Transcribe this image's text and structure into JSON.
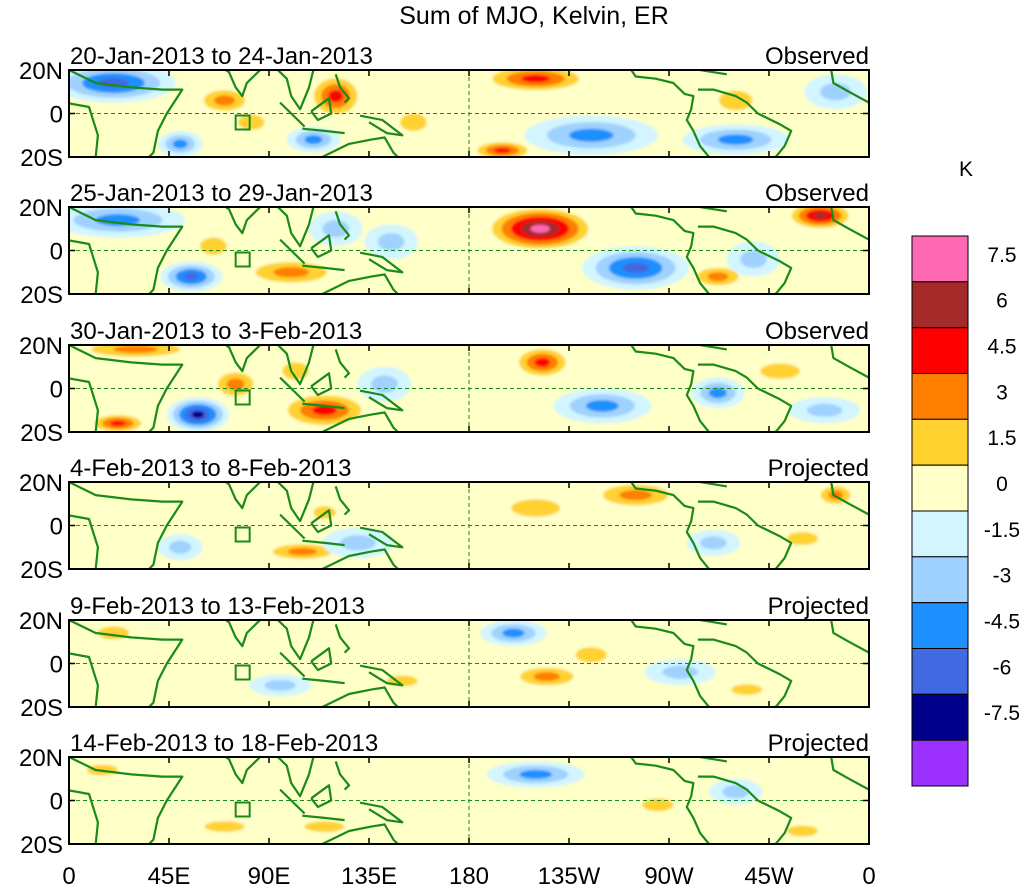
{
  "chart_data": {
    "type": "heatmap",
    "title": "Sum of MJO, Kelvin, ER",
    "xlabel": "",
    "ylabel": "",
    "x_tick_labels": [
      "0",
      "45E",
      "90E",
      "135E",
      "180",
      "135W",
      "90W",
      "45W",
      "0"
    ],
    "x_tick_longitudes": [
      0,
      45,
      90,
      135,
      180,
      225,
      270,
      315,
      360
    ],
    "y_tick_labels": [
      "20N",
      "0",
      "20S"
    ],
    "y_tick_latitudes": [
      20,
      0,
      -20
    ],
    "xlim": [
      0,
      360
    ],
    "ylim": [
      -20,
      20
    ],
    "colorbar": {
      "unit_label": "K",
      "tick_labels": [
        "7.5",
        "6",
        "4.5",
        "3",
        "1.5",
        "0",
        "-1.5",
        "-3",
        "-4.5",
        "-6",
        "-7.5"
      ],
      "levels_top_to_bottom": [
        {
          "range": [
            7.5,
            9
          ],
          "color": "#ff69b4"
        },
        {
          "range": [
            6,
            7.5
          ],
          "color": "#a52a2a"
        },
        {
          "range": [
            4.5,
            6
          ],
          "color": "#ff0000"
        },
        {
          "range": [
            3,
            4.5
          ],
          "color": "#ff7f00"
        },
        {
          "range": [
            1.5,
            3
          ],
          "color": "#ffd230"
        },
        {
          "range": [
            0,
            1.5
          ],
          "color": "#ffffc8"
        },
        {
          "range": [
            -1.5,
            0
          ],
          "color": "#d2f5ff"
        },
        {
          "range": [
            -3,
            -1.5
          ],
          "color": "#a0d2ff"
        },
        {
          "range": [
            -4.5,
            -3
          ],
          "color": "#1e90ff"
        },
        {
          "range": [
            -6,
            -4.5
          ],
          "color": "#4169e1"
        },
        {
          "range": [
            -7.5,
            -6
          ],
          "color": "#00008b"
        },
        {
          "range": [
            -9,
            -7.5
          ],
          "color": "#9b30ff"
        }
      ]
    },
    "panels": [
      {
        "period": "20-Jan-2013 to 24-Jan-2013",
        "status": "Observed",
        "anomalies": [
          {
            "lon": 20,
            "lat": 14,
            "rx": 28,
            "ry": 9,
            "value": -4.8
          },
          {
            "lon": 70,
            "lat": 6,
            "rx": 14,
            "ry": 7,
            "value": 3.6
          },
          {
            "lon": 50,
            "lat": -14,
            "rx": 10,
            "ry": 6,
            "value": -3.2
          },
          {
            "lon": 82,
            "lat": -4,
            "rx": 12,
            "ry": 7,
            "value": 2.2
          },
          {
            "lon": 120,
            "lat": 8,
            "rx": 13,
            "ry": 11,
            "value": 5.5
          },
          {
            "lon": 110,
            "lat": -12,
            "rx": 12,
            "ry": 6,
            "value": -3.6
          },
          {
            "lon": 155,
            "lat": -4,
            "rx": 12,
            "ry": 8,
            "value": 2.3
          },
          {
            "lon": 210,
            "lat": 16,
            "rx": 26,
            "ry": 7,
            "value": 5.3
          },
          {
            "lon": 195,
            "lat": -17,
            "rx": 15,
            "ry": 5,
            "value": 4.8
          },
          {
            "lon": 235,
            "lat": -10,
            "rx": 30,
            "ry": 9,
            "value": -4.4
          },
          {
            "lon": 300,
            "lat": 6,
            "rx": 15,
            "ry": 9,
            "value": 2.6
          },
          {
            "lon": 300,
            "lat": -12,
            "rx": 24,
            "ry": 7,
            "value": -3.3
          },
          {
            "lon": 345,
            "lat": 10,
            "rx": 14,
            "ry": 8,
            "value": -2.2
          }
        ]
      },
      {
        "period": "25-Jan-2013 to 29-Jan-2013",
        "status": "Observed",
        "anomalies": [
          {
            "lon": 22,
            "lat": 14,
            "rx": 30,
            "ry": 8,
            "value": -3.4
          },
          {
            "lon": 65,
            "lat": 2,
            "rx": 12,
            "ry": 8,
            "value": 2.2
          },
          {
            "lon": 55,
            "lat": -12,
            "rx": 14,
            "ry": 7,
            "value": -4.7
          },
          {
            "lon": 100,
            "lat": -10,
            "rx": 24,
            "ry": 7,
            "value": 3.8
          },
          {
            "lon": 120,
            "lat": 10,
            "rx": 12,
            "ry": 8,
            "value": -2.2
          },
          {
            "lon": 145,
            "lat": 4,
            "rx": 12,
            "ry": 8,
            "value": -2.5
          },
          {
            "lon": 212,
            "lat": 10,
            "rx": 26,
            "ry": 11,
            "value": 7.8
          },
          {
            "lon": 255,
            "lat": -8,
            "rx": 24,
            "ry": 10,
            "value": -5.4
          },
          {
            "lon": 292,
            "lat": -12,
            "rx": 14,
            "ry": 6,
            "value": 3.7
          },
          {
            "lon": 308,
            "lat": -4,
            "rx": 12,
            "ry": 8,
            "value": -2.6
          },
          {
            "lon": 338,
            "lat": 16,
            "rx": 16,
            "ry": 7,
            "value": 6.2
          }
        ]
      },
      {
        "period": "30-Jan-2013 to 3-Feb-2013",
        "status": "Observed",
        "anomalies": [
          {
            "lon": 30,
            "lat": 18,
            "rx": 30,
            "ry": 5,
            "value": 4.2
          },
          {
            "lon": 75,
            "lat": 2,
            "rx": 12,
            "ry": 8,
            "value": 3.8
          },
          {
            "lon": 58,
            "lat": -12,
            "rx": 14,
            "ry": 8,
            "value": -6.6
          },
          {
            "lon": 22,
            "lat": -16,
            "rx": 14,
            "ry": 5,
            "value": 5.0
          },
          {
            "lon": 115,
            "lat": -10,
            "rx": 22,
            "ry": 9,
            "value": 5.6
          },
          {
            "lon": 102,
            "lat": 8,
            "rx": 12,
            "ry": 8,
            "value": 2.2
          },
          {
            "lon": 142,
            "lat": 2,
            "rx": 12,
            "ry": 8,
            "value": -2.4
          },
          {
            "lon": 213,
            "lat": 12,
            "rx": 14,
            "ry": 8,
            "value": 4.9
          },
          {
            "lon": 240,
            "lat": -8,
            "rx": 22,
            "ry": 8,
            "value": -3.4
          },
          {
            "lon": 292,
            "lat": -2,
            "rx": 12,
            "ry": 7,
            "value": -3.1
          },
          {
            "lon": 320,
            "lat": 8,
            "rx": 18,
            "ry": 7,
            "value": 2.3
          },
          {
            "lon": 340,
            "lat": -10,
            "rx": 16,
            "ry": 6,
            "value": -1.8
          }
        ]
      },
      {
        "period": "4-Feb-2013 to 8-Feb-2013",
        "status": "Projected",
        "anomalies": [
          {
            "lon": 255,
            "lat": 14,
            "rx": 22,
            "ry": 7,
            "value": 3.7
          },
          {
            "lon": 210,
            "lat": 8,
            "rx": 22,
            "ry": 8,
            "value": 1.9
          },
          {
            "lon": 105,
            "lat": -12,
            "rx": 20,
            "ry": 5,
            "value": 3.2
          },
          {
            "lon": 115,
            "lat": 6,
            "rx": 10,
            "ry": 6,
            "value": 2.0
          },
          {
            "lon": 130,
            "lat": -8,
            "rx": 16,
            "ry": 7,
            "value": -1.7
          },
          {
            "lon": 50,
            "lat": -10,
            "rx": 10,
            "ry": 6,
            "value": -2.0
          },
          {
            "lon": 290,
            "lat": -8,
            "rx": 12,
            "ry": 6,
            "value": -2.2
          },
          {
            "lon": 330,
            "lat": -6,
            "rx": 14,
            "ry": 6,
            "value": 2.0
          },
          {
            "lon": 345,
            "lat": 14,
            "rx": 10,
            "ry": 6,
            "value": 3.2
          }
        ]
      },
      {
        "period": "9-Feb-2013 to 13-Feb-2013",
        "status": "Projected",
        "anomalies": [
          {
            "lon": 200,
            "lat": 14,
            "rx": 15,
            "ry": 6,
            "value": -4.3
          },
          {
            "lon": 215,
            "lat": -6,
            "rx": 18,
            "ry": 6,
            "value": 3.4
          },
          {
            "lon": 150,
            "lat": -8,
            "rx": 14,
            "ry": 5,
            "value": 2.0
          },
          {
            "lon": 95,
            "lat": -10,
            "rx": 14,
            "ry": 5,
            "value": -1.8
          },
          {
            "lon": 20,
            "lat": 14,
            "rx": 14,
            "ry": 6,
            "value": 2.5
          },
          {
            "lon": 305,
            "lat": -12,
            "rx": 14,
            "ry": 5,
            "value": 2.3
          },
          {
            "lon": 235,
            "lat": 4,
            "rx": 14,
            "ry": 7,
            "value": 2.0
          },
          {
            "lon": 275,
            "lat": -4,
            "rx": 16,
            "ry": 6,
            "value": -1.9
          }
        ]
      },
      {
        "period": "14-Feb-2013 to 18-Feb-2013",
        "status": "Projected",
        "anomalies": [
          {
            "lon": 210,
            "lat": 12,
            "rx": 22,
            "ry": 6,
            "value": -3.6
          },
          {
            "lon": 70,
            "lat": -12,
            "rx": 18,
            "ry": 5,
            "value": 2.3
          },
          {
            "lon": 115,
            "lat": -12,
            "rx": 18,
            "ry": 5,
            "value": 2.0
          },
          {
            "lon": 15,
            "lat": 14,
            "rx": 14,
            "ry": 5,
            "value": 2.1
          },
          {
            "lon": 330,
            "lat": -14,
            "rx": 14,
            "ry": 5,
            "value": 2.6
          },
          {
            "lon": 265,
            "lat": -2,
            "rx": 14,
            "ry": 6,
            "value": 2.0
          },
          {
            "lon": 300,
            "lat": 4,
            "rx": 12,
            "ry": 6,
            "value": -1.9
          }
        ]
      }
    ]
  }
}
